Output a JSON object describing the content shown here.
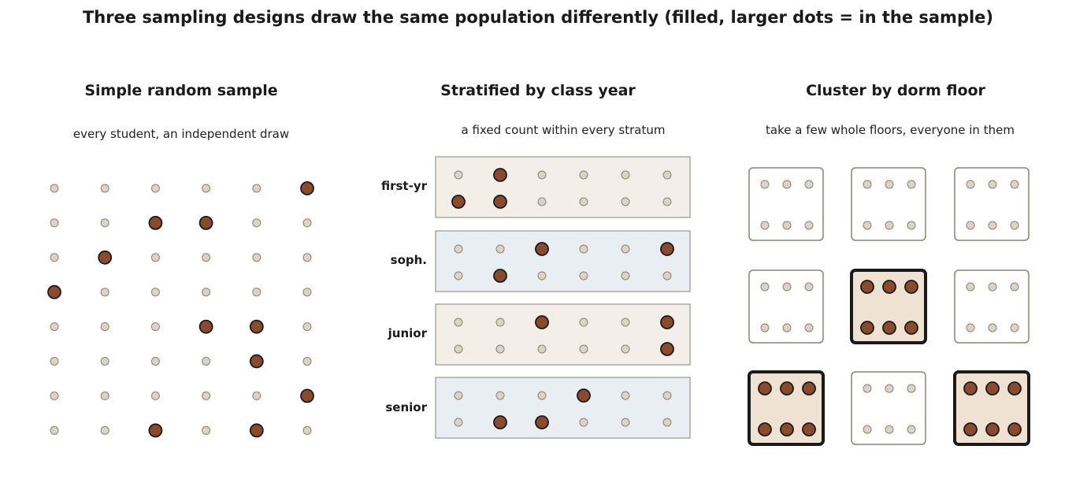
{
  "title": "Three sampling designs draw the same population differently (filled, larger dots = in the sample)",
  "colors": {
    "unsampled_fill": "#dcd3c5",
    "unsampled_stroke": "#8a8274",
    "sampled_fill": "#8a4a2d",
    "sampled_stroke": "#1a1a1a",
    "stratum_beige": "#f3eee8",
    "stratum_blue": "#e8eef2",
    "cluster_selected_fill": "#efe2d2",
    "box_border": "#8a8274"
  },
  "panels": {
    "srs": {
      "title": "Simple random sample",
      "subtitle": "every student, an independent draw",
      "rows": 8,
      "cols": 6,
      "sampled": [
        [
          0,
          5
        ],
        [
          1,
          2
        ],
        [
          1,
          3
        ],
        [
          2,
          1
        ],
        [
          3,
          0
        ],
        [
          4,
          3
        ],
        [
          4,
          4
        ],
        [
          5,
          4
        ],
        [
          6,
          5
        ],
        [
          7,
          2
        ],
        [
          7,
          4
        ]
      ]
    },
    "stratified": {
      "title": "Stratified by class year",
      "subtitle": "a fixed count within every stratum",
      "strata": [
        {
          "label": "first-yr",
          "tone": "beige",
          "sampled": [
            [
              0,
              1
            ],
            [
              1,
              0
            ],
            [
              1,
              1
            ]
          ]
        },
        {
          "label": "soph.",
          "tone": "blue",
          "sampled": [
            [
              0,
              2
            ],
            [
              0,
              5
            ],
            [
              1,
              1
            ]
          ]
        },
        {
          "label": "junior",
          "tone": "beige",
          "sampled": [
            [
              0,
              2
            ],
            [
              0,
              5
            ],
            [
              1,
              5
            ]
          ]
        },
        {
          "label": "senior",
          "tone": "blue",
          "sampled": [
            [
              0,
              3
            ],
            [
              1,
              1
            ],
            [
              1,
              2
            ]
          ]
        }
      ]
    },
    "cluster": {
      "title": "Cluster by dorm floor",
      "subtitle": "take a few whole floors, everyone in them",
      "grid_rows": 3,
      "grid_cols": 3,
      "selected": [
        [
          1,
          1
        ],
        [
          2,
          0
        ],
        [
          2,
          2
        ]
      ]
    }
  }
}
